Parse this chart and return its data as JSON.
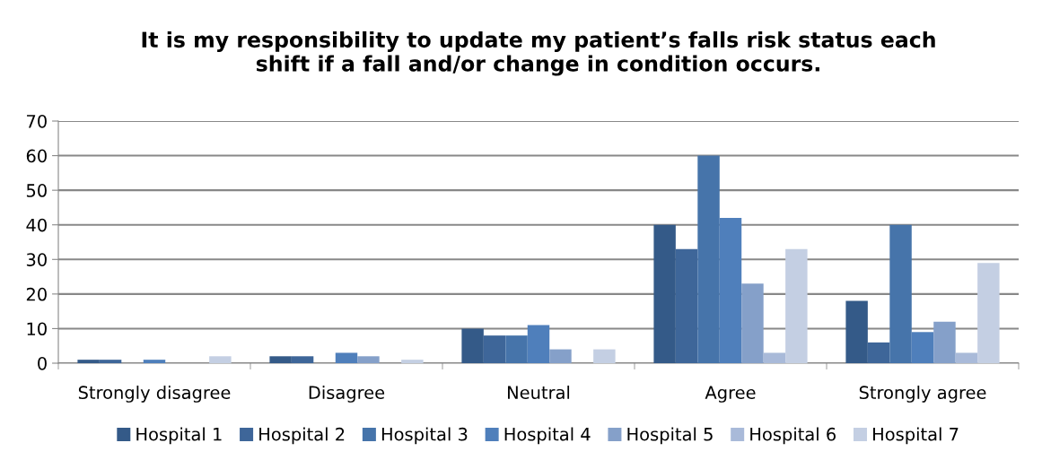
{
  "chart_data": {
    "type": "bar",
    "title": "It is my responsibility to update my patient’s falls risk status each\nshift if a fall and/or change in condition occurs.",
    "categories": [
      "Strongly disagree",
      "Disagree",
      "Neutral",
      "Agree",
      "Strongly agree"
    ],
    "series": [
      {
        "name": "Hospital 1",
        "color": "#345a88",
        "values": [
          1,
          2,
          10,
          40,
          18
        ]
      },
      {
        "name": "Hospital 2",
        "color": "#3e6699",
        "values": [
          1,
          2,
          8,
          33,
          6
        ]
      },
      {
        "name": "Hospital 3",
        "color": "#4674aa",
        "values": [
          0,
          0,
          8,
          60,
          40
        ]
      },
      {
        "name": "Hospital 4",
        "color": "#4f7fbb",
        "values": [
          1,
          3,
          11,
          42,
          9
        ]
      },
      {
        "name": "Hospital 5",
        "color": "#85a0c9",
        "values": [
          0,
          2,
          4,
          23,
          12
        ]
      },
      {
        "name": "Hospital 6",
        "color": "#a9bad9",
        "values": [
          0,
          0,
          0,
          3,
          3
        ]
      },
      {
        "name": "Hospital 7",
        "color": "#c4cfe3",
        "values": [
          2,
          1,
          4,
          33,
          29
        ]
      }
    ],
    "ylim": [
      0,
      70
    ],
    "yticks": [
      0,
      10,
      20,
      30,
      40,
      50,
      60,
      70
    ],
    "grid": "y",
    "legend": "bottom"
  }
}
